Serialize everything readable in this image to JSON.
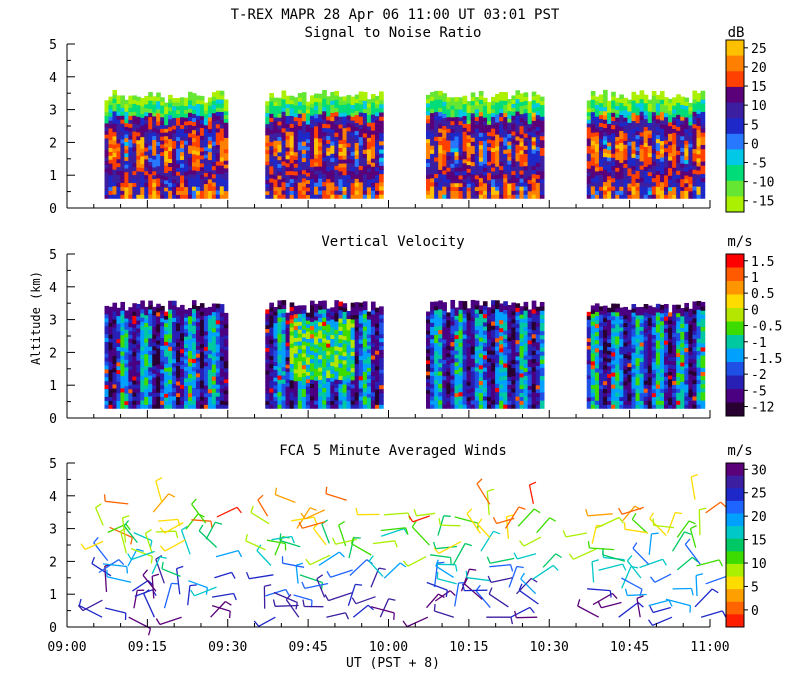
{
  "header": {
    "title": "T-REX  MAPR 28 Apr 06  11:00 UT  03:01  PST"
  },
  "axes": {
    "ylabel": "Altitude (km)",
    "xlabel": "UT  (PST + 8)",
    "yticks": [
      "0",
      "1",
      "2",
      "3",
      "4",
      "5"
    ],
    "xticks": [
      "09:00",
      "09:15",
      "09:30",
      "09:45",
      "10:00",
      "10:15",
      "10:30",
      "10:45",
      "11:00"
    ]
  },
  "chart_data": [
    {
      "type": "heatmap",
      "title": "Signal to Noise Ratio",
      "ylabel": "Altitude (km)",
      "ylim": [
        0,
        5
      ],
      "xlim": [
        "09:00",
        "11:00"
      ],
      "colorbar_unit": "dB",
      "colorbar_ticks": [
        "25",
        "20",
        "15",
        "10",
        "5",
        "0",
        "-5",
        "-10",
        "-15"
      ],
      "colors": [
        "#ffc000",
        "#ff8000",
        "#ff4000",
        "#5a0078",
        "#3c1ea0",
        "#1e28c8",
        "#2878ff",
        "#00c8e6",
        "#00dc78",
        "#64e632",
        "#aaf000"
      ],
      "segments": [
        [
          "09:07",
          "09:30"
        ],
        [
          "09:37",
          "09:59"
        ],
        [
          "10:07",
          "10:29"
        ],
        [
          "10:37",
          "10:59"
        ]
      ],
      "alt_range_km": [
        0.3,
        3.6
      ]
    },
    {
      "type": "heatmap",
      "title": "Vertical Velocity",
      "ylabel": "Altitude (km)",
      "ylim": [
        0,
        5
      ],
      "xlim": [
        "09:00",
        "11:00"
      ],
      "colorbar_unit": "m/s",
      "colorbar_ticks": [
        "1.5",
        "1",
        "0.5",
        "0",
        "-0.5",
        "-1",
        "-1.5",
        "-2",
        "-5",
        "-12"
      ],
      "colors": [
        "#ff0000",
        "#ff5a00",
        "#ff9600",
        "#ffdc00",
        "#b4e600",
        "#3cdc00",
        "#00c8a0",
        "#00a0ff",
        "#1e50e6",
        "#2820b4",
        "#4b0082",
        "#280032"
      ],
      "segments": [
        [
          "09:07",
          "09:30"
        ],
        [
          "09:37",
          "09:59"
        ],
        [
          "10:07",
          "10:29"
        ],
        [
          "10:37",
          "10:59"
        ]
      ],
      "alt_range_km": [
        0.3,
        3.6
      ]
    },
    {
      "type": "scatter",
      "title": "FCA 5 Minute Averaged Winds",
      "ylabel": "Altitude (km)",
      "ylim": [
        0,
        5
      ],
      "xlim": [
        "09:00",
        "11:00"
      ],
      "colorbar_unit": "m/s",
      "colorbar_ticks": [
        "30",
        "25",
        "20",
        "15",
        "10",
        "5",
        "0"
      ],
      "colors": [
        "#5a0078",
        "#3c1ea0",
        "#1e28c8",
        "#1e64ff",
        "#00a0ff",
        "#00c8c8",
        "#00c864",
        "#3cdc00",
        "#aaf000",
        "#ffdc00",
        "#ffa000",
        "#ff6400",
        "#ff1e00"
      ],
      "barb_columns_ut": [
        "09:07",
        "09:12",
        "09:17",
        "09:22",
        "09:27",
        "09:38",
        "09:43",
        "09:48",
        "09:53",
        "09:58",
        "10:08",
        "10:13",
        "10:18",
        "10:23",
        "10:28",
        "10:38",
        "10:43",
        "10:48",
        "10:53",
        "10:58"
      ],
      "alt_range_km": [
        0.3,
        3.9
      ]
    }
  ]
}
